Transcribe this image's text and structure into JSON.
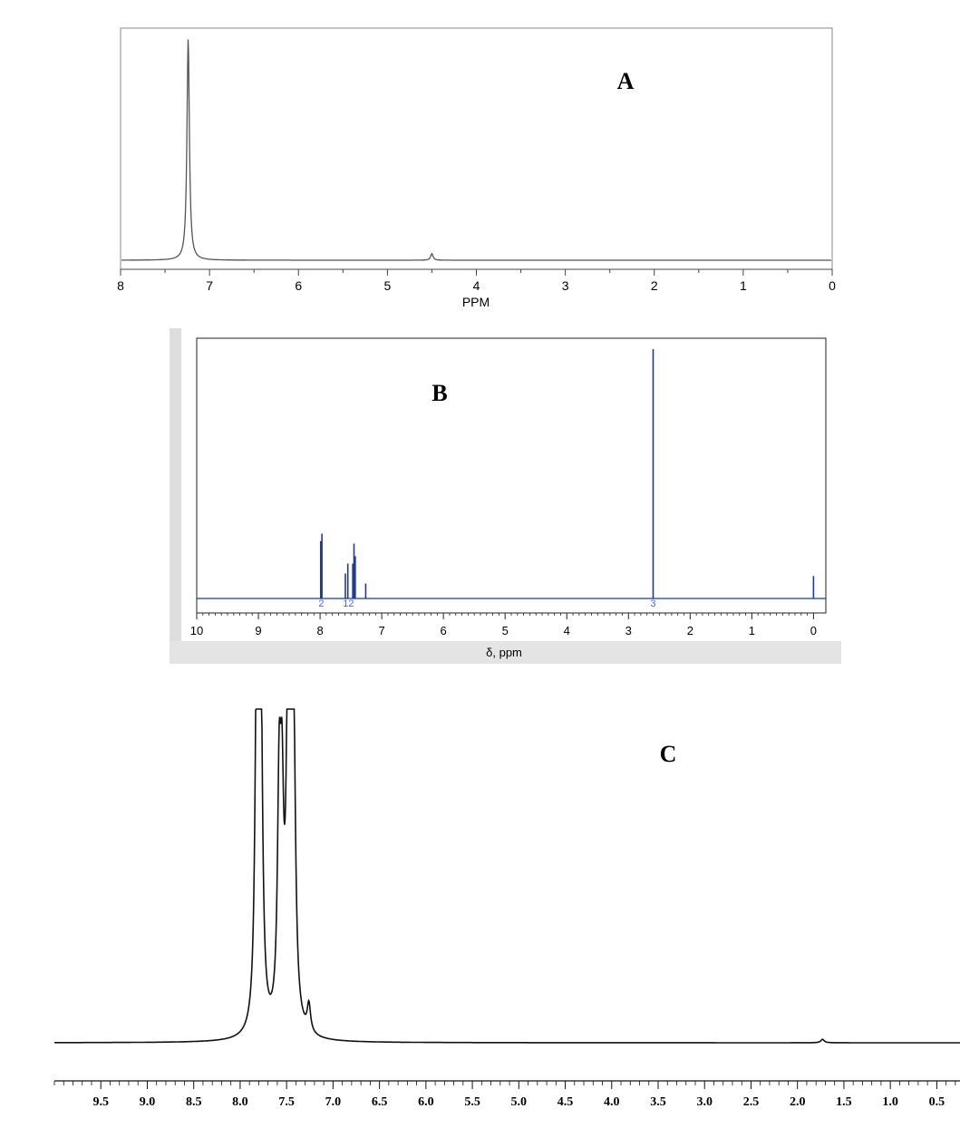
{
  "chart_data": [
    {
      "type": "line",
      "panel_label": "A",
      "xlabel": "PPM",
      "xlim": [
        8,
        0
      ],
      "x_reversed": true,
      "ticks": [
        8,
        7,
        6,
        5,
        4,
        3,
        2,
        1,
        0
      ],
      "tick_labels": [
        "8",
        "7",
        "6",
        "5",
        "4",
        "3",
        "2",
        "1",
        "0"
      ],
      "color": "#555555",
      "peaks": [
        {
          "shift": 7.24,
          "rel_height": 1.0
        },
        {
          "shift": 4.5,
          "rel_height": 0.03
        }
      ]
    },
    {
      "type": "line",
      "panel_label": "B",
      "xlabel": "δ, ppm",
      "xlim": [
        10,
        -0.2
      ],
      "x_reversed": true,
      "ticks": [
        10,
        9,
        8,
        7,
        6,
        5,
        4,
        3,
        2,
        1,
        0
      ],
      "tick_labels": [
        "10",
        "9",
        "8",
        "7",
        "6",
        "5",
        "4",
        "3",
        "2",
        "1",
        "0"
      ],
      "color": "#1f3a93",
      "integrals": [
        {
          "shift": 7.98,
          "text": "2"
        },
        {
          "shift": 7.54,
          "text": "12"
        },
        {
          "shift": 2.6,
          "text": "3"
        }
      ],
      "peaks": [
        {
          "shift": 7.99,
          "rel_height": 0.23
        },
        {
          "shift": 7.97,
          "rel_height": 0.26
        },
        {
          "shift": 7.59,
          "rel_height": 0.1
        },
        {
          "shift": 7.55,
          "rel_height": 0.14
        },
        {
          "shift": 7.47,
          "rel_height": 0.14
        },
        {
          "shift": 7.45,
          "rel_height": 0.22
        },
        {
          "shift": 7.43,
          "rel_height": 0.17
        },
        {
          "shift": 7.26,
          "rel_height": 0.06
        },
        {
          "shift": 2.6,
          "rel_height": 1.0
        },
        {
          "shift": 0.0,
          "rel_height": 0.09
        }
      ]
    },
    {
      "type": "line",
      "panel_label": "C",
      "xlabel": "",
      "xlim": [
        10.0,
        0.25
      ],
      "x_reversed": true,
      "ticks": [
        9.5,
        9.0,
        8.5,
        8.0,
        7.5,
        7.0,
        6.5,
        6.0,
        5.5,
        5.0,
        4.5,
        4.0,
        3.5,
        3.0,
        2.5,
        2.0,
        1.5,
        1.0,
        0.5
      ],
      "tick_labels": [
        "9.5",
        "9.0",
        "8.5",
        "8.0",
        "7.5",
        "7.0",
        "6.5",
        "6.0",
        "5.5",
        "5.0",
        "4.5",
        "4.0",
        "3.5",
        "3.0",
        "2.5",
        "2.0",
        "1.5",
        "1.0",
        "0.5"
      ],
      "color": "#111111",
      "peaks": [
        {
          "shift": 7.82,
          "rel_height": 1.1
        },
        {
          "shift": 7.78,
          "rel_height": 1.1
        },
        {
          "shift": 7.58,
          "rel_height": 0.63
        },
        {
          "shift": 7.55,
          "rel_height": 0.55
        },
        {
          "shift": 7.48,
          "rel_height": 1.1
        },
        {
          "shift": 7.45,
          "rel_height": 1.1
        },
        {
          "shift": 7.42,
          "rel_height": 0.5
        },
        {
          "shift": 7.26,
          "rel_height": 0.08
        },
        {
          "shift": 1.73,
          "rel_height": 0.01
        }
      ]
    }
  ]
}
